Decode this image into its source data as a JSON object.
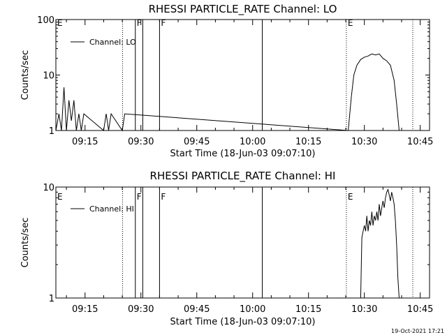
{
  "footer": {
    "timestamp": "19-Oct-2021 17:21"
  },
  "chart_data": [
    {
      "type": "line",
      "title": "RHESSI PARTICLE_RATE Channel: LO",
      "xlabel": "Start Time (18-Jun-03 09:07:10)",
      "ylabel": "Counts/sec",
      "yscale": "log",
      "ylim": [
        1,
        100
      ],
      "xlim": [
        "09:07:10",
        "10:47:30"
      ],
      "xticks": [
        "09:15",
        "09:30",
        "09:45",
        "10:00",
        "10:15",
        "10:30",
        "10:45"
      ],
      "yticks": [
        "1",
        "10",
        "100"
      ],
      "legend": {
        "label": "Channel: LO",
        "placement": "top-left"
      },
      "markers": [
        {
          "label": "E",
          "time": "09:07:10",
          "style": "dotted"
        },
        {
          "label": "",
          "time": "09:25:05",
          "style": "dotted"
        },
        {
          "label": "F",
          "time": "09:28:30",
          "style": "solid"
        },
        {
          "label": "",
          "time": "09:30:30",
          "style": "solid"
        },
        {
          "label": "F",
          "time": "09:35:00",
          "style": "solid"
        },
        {
          "label": "",
          "time": "10:02:35",
          "style": "solid"
        },
        {
          "label": "E",
          "time": "10:25:10",
          "style": "dotted"
        },
        {
          "label": "",
          "time": "10:43:00",
          "style": "dotted"
        }
      ],
      "series": [
        {
          "x": [
            "09:07:10",
            "09:08:00",
            "09:08:40",
            "09:09:20",
            "09:10:00",
            "09:10:40",
            "09:11:20",
            "09:12:00",
            "09:12:40",
            "09:13:20",
            "09:14:00",
            "09:14:40",
            "09:20:00",
            "09:20:40",
            "09:21:20",
            "09:22:00",
            "09:25:00",
            "09:25:40",
            "10:25:40",
            "10:26:30",
            "10:27:10",
            "10:28:00",
            "10:29:00",
            "10:30:00",
            "10:31:00",
            "10:32:00",
            "10:33:00",
            "10:34:00",
            "10:35:00",
            "10:36:00",
            "10:37:00",
            "10:38:00",
            "10:38:40",
            "10:39:20"
          ],
          "y": [
            1,
            2.0,
            1,
            6,
            1,
            3.5,
            1.5,
            3.5,
            1,
            2.0,
            1,
            2.0,
            1,
            2.0,
            1,
            2.0,
            1,
            2.0,
            1,
            4.0,
            10,
            15,
            19,
            21,
            22,
            24,
            23,
            24,
            20,
            18,
            15,
            8,
            3,
            1
          ]
        }
      ]
    },
    {
      "type": "line",
      "title": "RHESSI PARTICLE_RATE Channel: HI",
      "xlabel": "Start Time (18-Jun-03 09:07:10)",
      "ylabel": "Counts/sec",
      "yscale": "log",
      "ylim": [
        1,
        10
      ],
      "xlim": [
        "09:07:10",
        "10:47:30"
      ],
      "xticks": [
        "09:15",
        "09:30",
        "09:45",
        "10:00",
        "10:15",
        "10:30",
        "10:45"
      ],
      "yticks": [
        "1",
        "10"
      ],
      "legend": {
        "label": "Channel: HI",
        "placement": "top-left"
      },
      "markers": [
        {
          "label": "E",
          "time": "09:07:10",
          "style": "dotted"
        },
        {
          "label": "",
          "time": "09:25:05",
          "style": "dotted"
        },
        {
          "label": "F",
          "time": "09:28:30",
          "style": "solid"
        },
        {
          "label": "",
          "time": "09:30:30",
          "style": "solid"
        },
        {
          "label": "F",
          "time": "09:35:00",
          "style": "solid"
        },
        {
          "label": "",
          "time": "10:02:35",
          "style": "solid"
        },
        {
          "label": "E",
          "time": "10:25:10",
          "style": "dotted"
        },
        {
          "label": "",
          "time": "10:43:00",
          "style": "dotted"
        }
      ],
      "series": [
        {
          "x": [
            "10:29:00",
            "10:29:20",
            "10:29:40",
            "10:30:00",
            "10:30:20",
            "10:30:40",
            "10:31:00",
            "10:31:20",
            "10:31:40",
            "10:32:00",
            "10:32:20",
            "10:32:40",
            "10:33:00",
            "10:33:20",
            "10:33:40",
            "10:34:00",
            "10:34:20",
            "10:34:40",
            "10:35:00",
            "10:35:20",
            "10:35:40",
            "10:36:00",
            "10:36:20",
            "10:36:40",
            "10:37:00",
            "10:37:20",
            "10:37:40",
            "10:38:00",
            "10:38:20",
            "10:38:40",
            "10:39:00",
            "10:39:20"
          ],
          "y": [
            1,
            3.5,
            4.0,
            4.5,
            4.0,
            5.5,
            4.0,
            5.0,
            4.5,
            6.0,
            4.5,
            5.5,
            5.0,
            6.0,
            5.0,
            7.0,
            5.5,
            6.5,
            7.5,
            6.5,
            8.0,
            9.0,
            9.5,
            8.5,
            7.5,
            9.0,
            8.0,
            7.0,
            5.0,
            3.0,
            1.5,
            1
          ]
        }
      ]
    }
  ]
}
